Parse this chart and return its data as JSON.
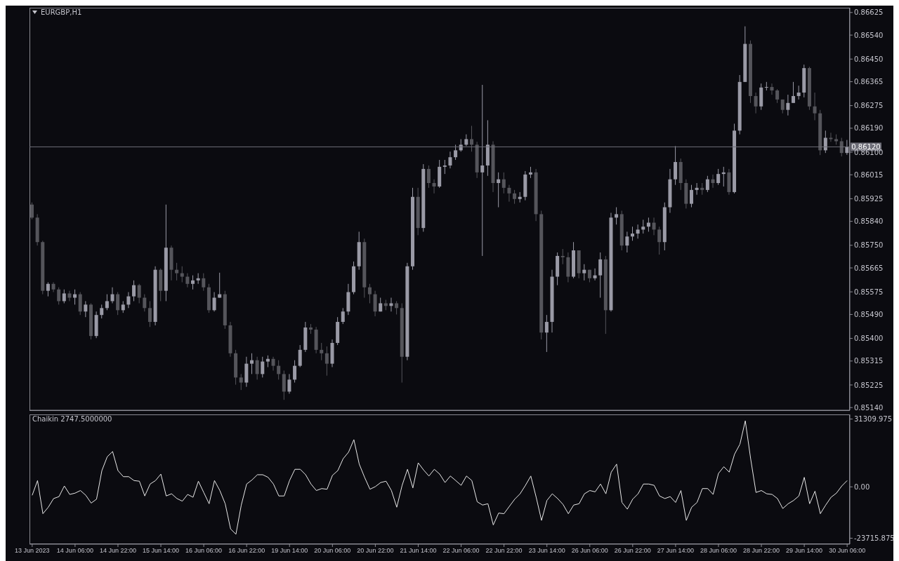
{
  "chart_data": [
    {
      "type": "candlestick",
      "title": "EURGBP,H1",
      "tick_labels": "y",
      "colors": [
        "#55555b",
        "#55555b",
        "#55555b",
        "#9a9aa6",
        "#55555b",
        "#55555b",
        "#9a9aa6",
        "#55555b",
        "#9a9aa6",
        "#55555b",
        "#9a9aa6",
        "#55555b",
        "#9a9aa6",
        "#9a9aa6",
        "#9a9aa6",
        "#9a9aa6",
        "#55555b",
        "#9a9aa6",
        "#9a9aa6",
        "#9a9aa6",
        "#55555b",
        "#55555b",
        "#55555b",
        "#9a9aa6",
        "#55555b",
        "#9a9aa6",
        "#55555b",
        "#55555b",
        "#55555b",
        "#55555b",
        "#9a9aa6",
        "#9a9aa6",
        "#55555b",
        "#55555b",
        "#9a9aa6",
        "#9a9aa6",
        "#55555b",
        "#55555b",
        "#55555b",
        "#55555b",
        "#9a9aa6",
        "#9a9aa6",
        "#55555b",
        "#9a9aa6",
        "#9a9aa6",
        "#55555b",
        "#55555b",
        "#55555b",
        "#9a9aa6",
        "#9a9aa6",
        "#9a9aa6",
        "#9a9aa6",
        "#55555b",
        "#55555b",
        "#55555b",
        "#55555b",
        "#9a9aa6",
        "#9a9aa6",
        "#9a9aa6",
        "#9a9aa6",
        "#9a9aa6",
        "#9a9aa6",
        "#55555b",
        "#55555b",
        "#55555b",
        "#9a9aa6",
        "#55555b",
        "#9a9aa6",
        "#55555b",
        "#55555b",
        "#9a9aa6",
        "#9a9aa6",
        "#55555b",
        "#9a9aa6",
        "#55555b",
        "#55555b",
        "#9a9aa6",
        "#9a9aa6",
        "#9a9aa6",
        "#9a9aa6",
        "#9a9aa6",
        "#9a9aa6",
        "#55555b",
        "#55555b",
        "#9a9aa6",
        "#9a9aa6",
        "#55555b",
        "#9a9aa6",
        "#55555b",
        "#55555b",
        "#55555b",
        "#9a9aa6",
        "#9a9aa6",
        "#9a9aa6",
        "#55555b",
        "#55555b",
        "#9a9aa6",
        "#9a9aa6",
        "#9a9aa6",
        "#55555b",
        "#55555b",
        "#9a9aa6",
        "#55555b",
        "#9a9aa6",
        "#55555b",
        "#9a9aa6",
        "#9a9aa6",
        "#55555b",
        "#9a9aa6",
        "#9a9aa6",
        "#55555b",
        "#9a9aa6",
        "#9a9aa6",
        "#9a9aa6",
        "#9a9aa6",
        "#9a9aa6",
        "#55555b",
        "#55555b",
        "#9a9aa6",
        "#9a9aa6",
        "#9a9aa6",
        "#55555b",
        "#55555b",
        "#9a9aa6",
        "#9a9aa6",
        "#55555b",
        "#9a9aa6",
        "#55555b",
        "#9a9aa6",
        "#9a9aa6",
        "#55555b",
        "#9a9aa6",
        "#9a9aa6",
        "#9a9aa6",
        "#55555b",
        "#55555b",
        "#9a9aa6",
        "#9a9aa6",
        "#55555b",
        "#55555b",
        "#55555b",
        "#9a9aa6",
        "#9a9aa6",
        "#9a9aa6",
        "#9a9aa6",
        "#55555b",
        "#55555b",
        "#55555b",
        "#9a9aa6",
        "#55555b",
        "#55555b",
        "#55555b",
        "#9a9aa6"
      ],
      "categories": [
        null,
        null,
        null,
        null,
        null,
        null,
        null,
        null,
        null,
        null,
        null,
        null,
        null,
        null,
        null,
        null,
        null,
        null,
        null,
        null,
        null,
        null,
        null,
        null,
        null,
        null,
        null,
        null,
        null,
        null,
        null,
        null,
        null,
        null,
        null,
        null,
        null,
        null,
        null,
        null,
        null,
        null,
        null,
        null,
        null,
        null,
        null,
        null,
        null,
        null,
        null,
        null,
        null,
        null,
        null,
        null,
        null,
        null,
        null,
        null,
        null,
        null,
        null,
        null,
        null,
        null,
        null,
        null,
        null,
        null,
        null,
        null,
        null,
        null,
        null,
        null,
        null,
        null,
        null,
        null,
        null,
        null,
        null,
        null,
        null,
        null,
        null,
        null,
        null,
        null,
        null,
        null,
        null,
        null,
        null,
        null,
        null,
        null,
        null,
        null,
        null,
        null,
        null,
        null,
        null,
        null,
        null,
        null,
        null,
        null,
        null,
        null,
        null,
        null,
        null,
        null,
        null,
        null,
        null,
        null,
        null,
        null,
        null,
        null,
        null,
        null,
        null,
        null,
        null,
        null,
        null,
        null,
        null,
        null,
        null,
        null,
        null,
        null,
        null,
        null,
        null,
        null,
        null,
        null,
        null,
        null,
        null,
        null,
        null,
        null,
        null,
        null,
        null
      ],
      "ohlc": [
        [
          0.85903,
          0.85911,
          0.85848,
          0.85854
        ],
        [
          0.85854,
          0.85867,
          0.85749,
          0.85762
        ],
        [
          0.85762,
          0.85767,
          0.85566,
          0.85579
        ],
        [
          0.85579,
          0.85611,
          0.85558,
          0.85605
        ],
        [
          0.85605,
          0.85611,
          0.85574,
          0.85584
        ],
        [
          0.85584,
          0.85592,
          0.85527,
          0.8554
        ],
        [
          0.8554,
          0.85584,
          0.85532,
          0.85569
        ],
        [
          0.85569,
          0.85579,
          0.8554,
          0.85553
        ],
        [
          0.85553,
          0.85584,
          0.85527,
          0.85566
        ],
        [
          0.85566,
          0.85574,
          0.85488,
          0.85501
        ],
        [
          0.85501,
          0.8554,
          0.8548,
          0.85527
        ],
        [
          0.85527,
          0.85532,
          0.85396,
          0.85409
        ],
        [
          0.85409,
          0.85501,
          0.85401,
          0.85488
        ],
        [
          0.85488,
          0.85527,
          0.85475,
          0.85514
        ],
        [
          0.85514,
          0.85566,
          0.85506,
          0.8554
        ],
        [
          0.8554,
          0.85592,
          0.85532,
          0.85566
        ],
        [
          0.85566,
          0.85574,
          0.85488,
          0.85506
        ],
        [
          0.85506,
          0.8554,
          0.85496,
          0.85527
        ],
        [
          0.85527,
          0.85574,
          0.85514,
          0.85558
        ],
        [
          0.85558,
          0.85618,
          0.8554,
          0.856
        ],
        [
          0.856,
          0.85605,
          0.85532,
          0.85553
        ],
        [
          0.85553,
          0.85566,
          0.85501,
          0.85514
        ],
        [
          0.85514,
          0.8554,
          0.85443,
          0.85462
        ],
        [
          0.85462,
          0.85671,
          0.85449,
          0.85658
        ],
        [
          0.85658,
          0.85663,
          0.8554,
          0.85579
        ],
        [
          0.85579,
          0.85903,
          0.8554,
          0.85741
        ],
        [
          0.85741,
          0.85749,
          0.85618,
          0.85658
        ],
        [
          0.85658,
          0.85684,
          0.85618,
          0.85645
        ],
        [
          0.85645,
          0.85671,
          0.85611,
          0.85632
        ],
        [
          0.85632,
          0.85645,
          0.85592,
          0.85605
        ],
        [
          0.85605,
          0.85637,
          0.85584,
          0.85618
        ],
        [
          0.85618,
          0.85645,
          0.85605,
          0.85626
        ],
        [
          0.85626,
          0.85645,
          0.85579,
          0.85592
        ],
        [
          0.85592,
          0.85605,
          0.85496,
          0.85506
        ],
        [
          0.85506,
          0.85574,
          0.85501,
          0.85553
        ],
        [
          0.85553,
          0.85647,
          0.85553,
          0.85566
        ],
        [
          0.85566,
          0.85579,
          0.85436,
          0.85449
        ],
        [
          0.85449,
          0.85462,
          0.85331,
          0.85344
        ],
        [
          0.85344,
          0.85357,
          0.85226,
          0.85253
        ],
        [
          0.85253,
          0.85266,
          0.85206,
          0.85234
        ],
        [
          0.85234,
          0.85331,
          0.85218,
          0.85305
        ],
        [
          0.85305,
          0.85344,
          0.85266,
          0.85318
        ],
        [
          0.85318,
          0.85331,
          0.85245,
          0.85266
        ],
        [
          0.85266,
          0.85331,
          0.85253,
          0.85313
        ],
        [
          0.85313,
          0.85336,
          0.85292,
          0.85323
        ],
        [
          0.85323,
          0.85331,
          0.85279,
          0.85297
        ],
        [
          0.85297,
          0.85318,
          0.85245,
          0.85266
        ],
        [
          0.85266,
          0.85279,
          0.85169,
          0.852
        ],
        [
          0.852,
          0.85266,
          0.85192,
          0.85245
        ],
        [
          0.85245,
          0.85318,
          0.85234,
          0.85297
        ],
        [
          0.85297,
          0.85375,
          0.85292,
          0.85357
        ],
        [
          0.85357,
          0.85462,
          0.85349,
          0.85441
        ],
        [
          0.85441,
          0.85454,
          0.85417,
          0.85433
        ],
        [
          0.85433,
          0.85443,
          0.85344,
          0.85357
        ],
        [
          0.85357,
          0.85383,
          0.85318,
          0.85344
        ],
        [
          0.85344,
          0.8537,
          0.8526,
          0.85305
        ],
        [
          0.85305,
          0.85396,
          0.85292,
          0.85383
        ],
        [
          0.85383,
          0.8548,
          0.85375,
          0.85462
        ],
        [
          0.85462,
          0.85514,
          0.85454,
          0.85501
        ],
        [
          0.85501,
          0.85605,
          0.85488,
          0.85574
        ],
        [
          0.85574,
          0.85689,
          0.85566,
          0.85671
        ],
        [
          0.85671,
          0.85801,
          0.85658,
          0.85762
        ],
        [
          0.85762,
          0.85775,
          0.85553,
          0.85592
        ],
        [
          0.85592,
          0.85605,
          0.85532,
          0.85566
        ],
        [
          0.85566,
          0.85579,
          0.85483,
          0.85501
        ],
        [
          0.85501,
          0.85553,
          0.85501,
          0.85532
        ],
        [
          0.85532,
          0.85545,
          0.85506,
          0.85522
        ],
        [
          0.85522,
          0.85553,
          0.85501,
          0.85532
        ],
        [
          0.85532,
          0.8554,
          0.8549,
          0.85514
        ],
        [
          0.85514,
          0.85532,
          0.85234,
          0.85331
        ],
        [
          0.85331,
          0.85684,
          0.85318,
          0.85671
        ],
        [
          0.85671,
          0.85966,
          0.85658,
          0.85932
        ],
        [
          0.85932,
          0.85966,
          0.85788,
          0.85815
        ],
        [
          0.85815,
          0.86055,
          0.85801,
          0.86037
        ],
        [
          0.86037,
          0.8605,
          0.85966,
          0.85984
        ],
        [
          0.85984,
          0.85998,
          0.85945,
          0.85971
        ],
        [
          0.85971,
          0.86071,
          0.85966,
          0.86045
        ],
        [
          0.86045,
          0.86071,
          0.86018,
          0.8605
        ],
        [
          0.8605,
          0.86102,
          0.86039,
          0.86081
        ],
        [
          0.86081,
          0.86128,
          0.86071,
          0.86107
        ],
        [
          0.86107,
          0.86149,
          0.86102,
          0.86128
        ],
        [
          0.86128,
          0.86167,
          0.86123,
          0.86149
        ],
        [
          0.86149,
          0.86199,
          0.86102,
          0.86128
        ],
        [
          0.86128,
          0.86139,
          0.86003,
          0.86024
        ],
        [
          0.86024,
          0.86353,
          0.8571,
          0.8605
        ],
        [
          0.8605,
          0.8622,
          0.86011,
          0.86128
        ],
        [
          0.86128,
          0.86141,
          0.8595,
          0.85984
        ],
        [
          0.85984,
          0.86024,
          0.85893,
          0.85998
        ],
        [
          0.85998,
          0.86024,
          0.85945,
          0.85966
        ],
        [
          0.85966,
          0.85977,
          0.85914,
          0.85945
        ],
        [
          0.85945,
          0.85958,
          0.85906,
          0.85924
        ],
        [
          0.85924,
          0.8595,
          0.85911,
          0.85932
        ],
        [
          0.85932,
          0.86029,
          0.85919,
          0.86016
        ],
        [
          0.86016,
          0.86045,
          0.86003,
          0.86024
        ],
        [
          0.86024,
          0.86037,
          0.85841,
          0.85867
        ],
        [
          0.85867,
          0.8588,
          0.85396,
          0.85422
        ],
        [
          0.85422,
          0.85488,
          0.85349,
          0.85462
        ],
        [
          0.85462,
          0.85658,
          0.85422,
          0.85632
        ],
        [
          0.85632,
          0.85723,
          0.856,
          0.8571
        ],
        [
          0.8571,
          0.85736,
          0.85679,
          0.85705
        ],
        [
          0.85705,
          0.85723,
          0.85611,
          0.85632
        ],
        [
          0.85632,
          0.85762,
          0.85626,
          0.85731
        ],
        [
          0.85731,
          0.85731,
          0.85626,
          0.85645
        ],
        [
          0.85645,
          0.85679,
          0.85618,
          0.85658
        ],
        [
          0.85658,
          0.85658,
          0.85611,
          0.85626
        ],
        [
          0.85626,
          0.85663,
          0.85618,
          0.85637
        ],
        [
          0.85637,
          0.85723,
          0.85553,
          0.85697
        ],
        [
          0.85697,
          0.8571,
          0.85417,
          0.85506
        ],
        [
          0.85506,
          0.85872,
          0.85501,
          0.85854
        ],
        [
          0.85854,
          0.85893,
          0.85828,
          0.85867
        ],
        [
          0.85867,
          0.8588,
          0.85731,
          0.85749
        ],
        [
          0.85749,
          0.85801,
          0.85723,
          0.85783
        ],
        [
          0.85783,
          0.8582,
          0.85767,
          0.85794
        ],
        [
          0.85794,
          0.85828,
          0.85775,
          0.85809
        ],
        [
          0.85809,
          0.85846,
          0.85794,
          0.8582
        ],
        [
          0.8582,
          0.85854,
          0.85801,
          0.85835
        ],
        [
          0.85835,
          0.85854,
          0.85788,
          0.85809
        ],
        [
          0.85809,
          0.8582,
          0.85715,
          0.85762
        ],
        [
          0.85762,
          0.85911,
          0.85731,
          0.85893
        ],
        [
          0.85893,
          0.86037,
          0.85872,
          0.85998
        ],
        [
          0.85998,
          0.86123,
          0.85977,
          0.86063
        ],
        [
          0.86063,
          0.86076,
          0.85958,
          0.85984
        ],
        [
          0.85984,
          0.85998,
          0.85888,
          0.85906
        ],
        [
          0.85906,
          0.85977,
          0.85893,
          0.85958
        ],
        [
          0.85958,
          0.85984,
          0.8594,
          0.85966
        ],
        [
          0.85966,
          0.85984,
          0.8594,
          0.85958
        ],
        [
          0.85958,
          0.86011,
          0.8595,
          0.85998
        ],
        [
          0.85998,
          0.86016,
          0.85966,
          0.85984
        ],
        [
          0.85984,
          0.86037,
          0.85977,
          0.86018
        ],
        [
          0.86018,
          0.86045,
          0.85971,
          0.86024
        ],
        [
          0.86024,
          0.86037,
          0.8594,
          0.8595
        ],
        [
          0.8595,
          0.86207,
          0.85945,
          0.86181
        ],
        [
          0.86181,
          0.8639,
          0.86167,
          0.86364
        ],
        [
          0.86364,
          0.86573,
          0.86364,
          0.86507
        ],
        [
          0.86507,
          0.8652,
          0.86285,
          0.86311
        ],
        [
          0.86311,
          0.86324,
          0.86246,
          0.86272
        ],
        [
          0.86272,
          0.86358,
          0.86259,
          0.86343
        ],
        [
          0.86343,
          0.86364,
          0.86332,
          0.86345
        ],
        [
          0.86345,
          0.86358,
          0.86316,
          0.86332
        ],
        [
          0.86332,
          0.86337,
          0.86285,
          0.86298
        ],
        [
          0.86298,
          0.86298,
          0.86246,
          0.86259
        ],
        [
          0.86259,
          0.86316,
          0.86238,
          0.86285
        ],
        [
          0.86285,
          0.86364,
          0.86285,
          0.86311
        ],
        [
          0.86311,
          0.8635,
          0.86298,
          0.86324
        ],
        [
          0.86324,
          0.86429,
          0.86306,
          0.86416
        ],
        [
          0.86416,
          0.86421,
          0.86259,
          0.86272
        ],
        [
          0.86272,
          0.86324,
          0.8622,
          0.86246
        ],
        [
          0.86246,
          0.86259,
          0.86089,
          0.86107
        ],
        [
          0.86107,
          0.86181,
          0.86097,
          0.86154
        ],
        [
          0.86154,
          0.86173,
          0.86139,
          0.86149
        ],
        [
          0.86149,
          0.86167,
          0.86128,
          0.86141
        ],
        [
          0.86141,
          0.86154,
          0.86084,
          0.86097
        ],
        [
          0.86097,
          0.86146,
          0.8609,
          0.8612
        ]
      ],
      "ylim": [
        0.8513,
        0.86643
      ],
      "yticks": [
        {
          "value": 0.86625,
          "label": "0.86625"
        },
        {
          "value": 0.8654,
          "label": "0.86540"
        },
        {
          "value": 0.8645,
          "label": "0.86450"
        },
        {
          "value": 0.86365,
          "label": "0.86365"
        },
        {
          "value": 0.86275,
          "label": "0.86275"
        },
        {
          "value": 0.8619,
          "label": "0.86190"
        },
        {
          "value": 0.861,
          "label": "0.86100"
        },
        {
          "value": 0.86015,
          "label": "0.86015"
        },
        {
          "value": 0.85925,
          "label": "0.85925"
        },
        {
          "value": 0.8584,
          "label": "0.85840"
        },
        {
          "value": 0.8575,
          "label": "0.85750"
        },
        {
          "value": 0.85665,
          "label": "0.85665"
        },
        {
          "value": 0.85575,
          "label": "0.85575"
        },
        {
          "value": 0.8549,
          "label": "0.85490"
        },
        {
          "value": 0.854,
          "label": "0.85400"
        },
        {
          "value": 0.85315,
          "label": "0.85315"
        },
        {
          "value": 0.85225,
          "label": "0.85225"
        },
        {
          "value": 0.8514,
          "label": "0.85140"
        }
      ],
      "ref_lines": [
        {
          "axis": "y",
          "value": 0.8612,
          "label": "0.86120",
          "color": "#6e6e78"
        }
      ]
    },
    {
      "type": "line",
      "title": "Chaikin 2747.5000000",
      "color": "#e8e8e8",
      "marker": "none",
      "categories": [
        "13 Jun 2023",
        null,
        null,
        null,
        null,
        null,
        null,
        null,
        "14 Jun 06:00",
        null,
        null,
        null,
        null,
        null,
        null,
        null,
        "14 Jun 22:00",
        null,
        null,
        null,
        null,
        null,
        null,
        null,
        "15 Jun 14:00",
        null,
        null,
        null,
        null,
        null,
        null,
        null,
        "16 Jun 06:00",
        null,
        null,
        null,
        null,
        null,
        null,
        null,
        "16 Jun 22:00",
        null,
        null,
        null,
        null,
        null,
        null,
        null,
        "19 Jun 14:00",
        null,
        null,
        null,
        null,
        null,
        null,
        null,
        "20 Jun 06:00",
        null,
        null,
        null,
        null,
        null,
        null,
        null,
        "20 Jun 22:00",
        null,
        null,
        null,
        null,
        null,
        null,
        null,
        "21 Jun 14:00",
        null,
        null,
        null,
        null,
        null,
        null,
        null,
        "22 Jun 06:00",
        null,
        null,
        null,
        null,
        null,
        null,
        null,
        "22 Jun 22:00",
        null,
        null,
        null,
        null,
        null,
        null,
        null,
        "23 Jun 14:00",
        null,
        null,
        null,
        null,
        null,
        null,
        null,
        "26 Jun 06:00",
        null,
        null,
        null,
        null,
        null,
        null,
        null,
        "26 Jun 22:00",
        null,
        null,
        null,
        null,
        null,
        null,
        null,
        "27 Jun 14:00",
        null,
        null,
        null,
        null,
        null,
        null,
        null,
        "28 Jun 06:00",
        null,
        null,
        null,
        null,
        null,
        null,
        null,
        "28 Jun 22:00",
        null,
        null,
        null,
        null,
        null,
        null,
        null,
        "29 Jun 14:00",
        null,
        null,
        null,
        null,
        null,
        null,
        null,
        "30 Jun 06:00"
      ],
      "values": [
        -3900,
        2900,
        -12400,
        -9400,
        -5400,
        -4500,
        400,
        -3500,
        -2900,
        -1700,
        -3900,
        -7500,
        -5700,
        7500,
        13900,
        16300,
        7500,
        4700,
        4700,
        2900,
        2600,
        -4200,
        1300,
        2900,
        5900,
        -4200,
        -3200,
        -5400,
        -6600,
        -3500,
        -4800,
        2600,
        -2600,
        -7800,
        2900,
        -1700,
        -7800,
        -19400,
        -21900,
        -8400,
        1300,
        3200,
        5600,
        5600,
        4400,
        1300,
        -4200,
        -4200,
        2900,
        8100,
        8100,
        5600,
        1300,
        -1700,
        -800,
        -1100,
        5300,
        7500,
        13000,
        16000,
        21800,
        10500,
        4400,
        -1100,
        100,
        2000,
        2600,
        -1700,
        -9400,
        700,
        8100,
        -500,
        11100,
        7800,
        5000,
        8100,
        5900,
        2000,
        5000,
        2900,
        700,
        5000,
        2900,
        -6900,
        -8400,
        -7800,
        -17600,
        -12100,
        -12400,
        -9000,
        -5700,
        -3200,
        700,
        5000,
        -4800,
        -15500,
        -6300,
        -3200,
        -5400,
        -8100,
        -12400,
        -8400,
        -7800,
        -3200,
        -1700,
        -2300,
        1300,
        -3200,
        6800,
        10500,
        -7200,
        -10300,
        -5700,
        -3200,
        1300,
        1300,
        700,
        -4200,
        -5400,
        -4500,
        -7200,
        -1700,
        -15500,
        -9400,
        -7200,
        -800,
        -800,
        -3500,
        6200,
        9300,
        6800,
        15100,
        19700,
        30500,
        13000,
        -2600,
        -1700,
        -3200,
        -3500,
        -5400,
        -10000,
        -7800,
        -6300,
        -4200,
        4400,
        -7800,
        -2000,
        -12400,
        -8400,
        -4800,
        -2900,
        400,
        2900
      ],
      "ylim": [
        -26470,
        33440
      ],
      "yticks": [
        {
          "value": 31309.975,
          "label": "31309.975"
        },
        {
          "value": 0,
          "label": "0.00"
        },
        {
          "value": -23715.875,
          "label": "-23715.875"
        }
      ]
    }
  ]
}
